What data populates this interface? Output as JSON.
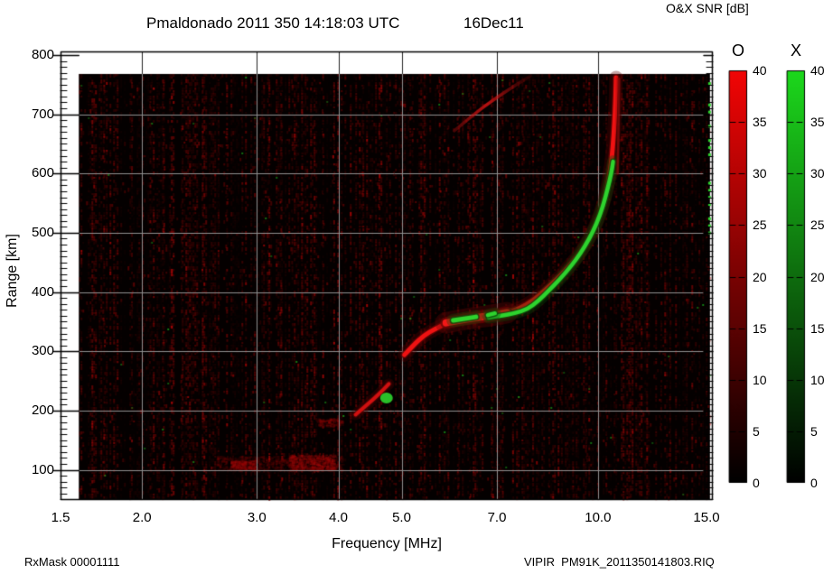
{
  "title": {
    "main": "Pmaldonado 2011 350 14:18:03 UTC",
    "date": "16Dec11"
  },
  "colorbar": {
    "title": "O&X SNR [dB]",
    "min": 0,
    "max": 40,
    "tick_step": 5,
    "tick_values": [
      "40",
      "35",
      "30",
      "25",
      "20",
      "15",
      "10",
      "5",
      "0"
    ],
    "bars": [
      {
        "label": "O",
        "top_color": "#f20505",
        "bottom_color": "#000000"
      },
      {
        "label": "X",
        "top_color": "#1cd81c",
        "bottom_color": "#000000"
      }
    ]
  },
  "footer": {
    "left": "RxMask 00001111",
    "right": "VIPIR  PM91K_2011350141803.RIQ"
  },
  "chart_data": {
    "type": "heatmap",
    "title": "Pmaldonado 2011 350 14:18:03 UTC 16Dec11",
    "xlabel": "Frequency [MHz]",
    "ylabel": "Range [km]",
    "x_scale": "log",
    "xlim": [
      1.5,
      15.0
    ],
    "ylim": [
      49,
      806
    ],
    "grid": true,
    "x_ticks": [
      {
        "v": 1.5,
        "label": "1.5"
      },
      {
        "v": 2.0,
        "label": "2.0"
      },
      {
        "v": 3.0,
        "label": "3.0"
      },
      {
        "v": 4.0,
        "label": "4.0"
      },
      {
        "v": 5.0,
        "label": "5.0"
      },
      {
        "v": 7.0,
        "label": "7.0"
      },
      {
        "v": 10.0,
        "label": "10.0"
      },
      {
        "v": 15.0,
        "label": "15.0"
      }
    ],
    "y_ticks": [
      {
        "v": 800,
        "label": "800"
      },
      {
        "v": 700,
        "label": "700"
      },
      {
        "v": 600,
        "label": "600"
      },
      {
        "v": 500,
        "label": "500"
      },
      {
        "v": 400,
        "label": "400"
      },
      {
        "v": 300,
        "label": "300"
      },
      {
        "v": 200,
        "label": "200"
      },
      {
        "v": 100,
        "label": "100"
      }
    ],
    "y_minor_step": 10,
    "grid_major_x": [
      2,
      3,
      4,
      5,
      7,
      10
    ],
    "grid_major_y": [
      100,
      200,
      300,
      400,
      500,
      600,
      700
    ],
    "data_extent": {
      "f_min": 1.6,
      "f_max": 14.85,
      "km_min": 50,
      "km_max": 768
    },
    "noise_seed": 42,
    "background": "#040000",
    "grid_color": "#8f8f8f",
    "traces": [
      {
        "name": "O-mode F-layer",
        "mode": "O",
        "color": "#ee1212",
        "glow": "#5c0404",
        "width": 5,
        "points": [
          [
            5.05,
            294
          ],
          [
            5.22,
            311
          ],
          [
            5.4,
            326
          ],
          [
            5.63,
            338
          ],
          [
            5.9,
            349
          ],
          [
            6.35,
            356
          ],
          [
            6.9,
            361
          ],
          [
            7.3,
            366
          ],
          [
            7.6,
            373
          ],
          [
            7.95,
            385
          ],
          [
            8.3,
            403
          ],
          [
            8.7,
            424
          ],
          [
            9.1,
            447
          ],
          [
            9.45,
            470
          ],
          [
            9.75,
            495
          ],
          [
            10.0,
            522
          ],
          [
            10.2,
            550
          ],
          [
            10.35,
            580
          ],
          [
            10.46,
            610
          ],
          [
            10.54,
            645
          ],
          [
            10.6,
            685
          ],
          [
            10.64,
            725
          ],
          [
            10.66,
            762
          ]
        ]
      },
      {
        "name": "O-mode F-layer bright band",
        "mode": "O",
        "color": "#f31717",
        "glow": "#6b0505",
        "width": 8,
        "points": [
          [
            5.85,
            348
          ],
          [
            6.3,
            355
          ],
          [
            6.85,
            360
          ],
          [
            7.25,
            365
          ]
        ]
      },
      {
        "name": "X-mode F-layer",
        "mode": "X",
        "color": "#2ed32e",
        "glow": "#0a4a0a",
        "width": 4.5,
        "points": [
          [
            6.8,
            357
          ],
          [
            7.1,
            360
          ],
          [
            7.45,
            364
          ],
          [
            7.8,
            371
          ],
          [
            8.1,
            385
          ],
          [
            8.4,
            402
          ],
          [
            8.75,
            422
          ],
          [
            9.1,
            444
          ],
          [
            9.4,
            465
          ],
          [
            9.7,
            490
          ],
          [
            9.95,
            515
          ],
          [
            10.18,
            545
          ],
          [
            10.35,
            575
          ],
          [
            10.48,
            600
          ],
          [
            10.55,
            620
          ]
        ]
      },
      {
        "name": "X-mode patch 1",
        "mode": "X",
        "color": "#2ed32e",
        "glow": "#0a4a0a",
        "width": 5,
        "points": [
          [
            6.0,
            352
          ],
          [
            6.25,
            355
          ],
          [
            6.5,
            358
          ]
        ]
      },
      {
        "name": "X-mode patch 2",
        "mode": "X",
        "color": "#2ed32e",
        "glow": "#0a4a0a",
        "width": 4.5,
        "points": [
          [
            6.78,
            361
          ],
          [
            6.95,
            364
          ]
        ]
      },
      {
        "name": "O-mode E/Es-layer",
        "mode": "O",
        "color": "#d01010",
        "glow": "#500404",
        "width": 4,
        "points": [
          [
            4.25,
            193
          ],
          [
            4.45,
            212
          ],
          [
            4.62,
            228
          ],
          [
            4.78,
            245
          ]
        ]
      },
      {
        "name": "O-mode spread streak",
        "mode": "O",
        "color": "#b01010",
        "glow": "#400303",
        "width": 2.5,
        "alpha": 0.5,
        "points": [
          [
            10.72,
            600
          ],
          [
            10.76,
            690
          ],
          [
            10.78,
            760
          ]
        ]
      }
    ],
    "second_hop": {
      "name": "O-mode second-hop streak",
      "color": "#c81414",
      "width": 3.5,
      "points": [
        [
          6.02,
          672
        ],
        [
          6.5,
          703
        ],
        [
          6.95,
          726
        ],
        [
          7.45,
          748
        ],
        [
          7.88,
          765
        ]
      ]
    },
    "es_blob": {
      "name": "X-mode Es blob",
      "color": "#2ed32e",
      "f": 4.74,
      "km": 221,
      "rx": 7,
      "ry": 6
    },
    "smudges": [
      {
        "f0": 2.6,
        "f1": 4.05,
        "km": 112,
        "h_km": 24,
        "alpha": 0.22,
        "n": 700
      },
      {
        "f0": 2.72,
        "f1": 2.98,
        "km": 108,
        "h_km": 16,
        "alpha": 0.38,
        "n": 220
      },
      {
        "f0": 3.35,
        "f1": 3.95,
        "km": 113,
        "h_km": 26,
        "alpha": 0.42,
        "n": 420
      },
      {
        "f0": 3.7,
        "f1": 4.05,
        "km": 181,
        "h_km": 12,
        "alpha": 0.3,
        "n": 130
      }
    ],
    "rfi_columns": [
      {
        "f": 1.75,
        "s": 0.5
      },
      {
        "f": 1.93,
        "s": 0.38
      },
      {
        "f": 2.06,
        "s": 0.32
      },
      {
        "f": 2.16,
        "s": 0.42
      },
      {
        "f": 2.3,
        "s": 0.25
      },
      {
        "f": 2.48,
        "s": 0.45
      },
      {
        "f": 2.62,
        "s": 0.3
      },
      {
        "f": 2.7,
        "s": 0.5
      },
      {
        "f": 2.85,
        "s": 0.3
      },
      {
        "f": 2.98,
        "s": 0.38
      },
      {
        "f": 3.12,
        "s": 0.25
      },
      {
        "f": 3.27,
        "s": 0.45
      },
      {
        "f": 3.4,
        "s": 0.3
      },
      {
        "f": 3.52,
        "s": 0.42
      },
      {
        "f": 3.65,
        "s": 0.3
      },
      {
        "f": 3.79,
        "s": 0.45
      },
      {
        "f": 3.94,
        "s": 0.6
      },
      {
        "f": 4.1,
        "s": 0.28
      },
      {
        "f": 4.35,
        "s": 0.28
      },
      {
        "f": 4.62,
        "s": 0.4
      },
      {
        "f": 4.8,
        "s": 0.3
      },
      {
        "f": 5.0,
        "s": 0.32
      },
      {
        "f": 5.2,
        "s": 0.25
      },
      {
        "f": 5.42,
        "s": 0.38
      },
      {
        "f": 5.72,
        "s": 0.55
      },
      {
        "f": 5.9,
        "s": 0.3
      },
      {
        "f": 6.1,
        "s": 0.32
      },
      {
        "f": 6.36,
        "s": 0.38
      },
      {
        "f": 6.6,
        "s": 0.25
      },
      {
        "f": 6.89,
        "s": 0.4
      },
      {
        "f": 7.15,
        "s": 0.3
      },
      {
        "f": 7.41,
        "s": 0.45
      },
      {
        "f": 7.7,
        "s": 0.3
      },
      {
        "f": 7.95,
        "s": 0.5
      },
      {
        "f": 8.42,
        "s": 0.4
      },
      {
        "f": 8.8,
        "s": 0.25
      },
      {
        "f": 9.16,
        "s": 0.32
      },
      {
        "f": 9.6,
        "s": 0.25
      },
      {
        "f": 10.0,
        "s": 0.45
      },
      {
        "f": 10.3,
        "s": 0.3
      },
      {
        "f": 11.2,
        "s": 0.3
      },
      {
        "f": 11.9,
        "s": 0.25
      },
      {
        "f": 12.5,
        "s": 0.22
      },
      {
        "f": 12.9,
        "s": 0.3
      },
      {
        "f": 13.7,
        "s": 0.25
      },
      {
        "f": 14.3,
        "s": 0.2
      }
    ],
    "edge_artifact": {
      "color": "#2ed32e",
      "km_min": 490,
      "km_max": 760
    }
  }
}
